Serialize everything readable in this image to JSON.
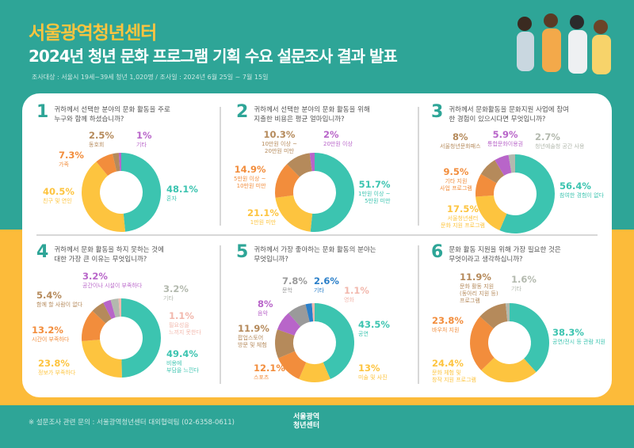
{
  "header": {
    "org": "서울광역청년센터",
    "title": "2024년 청년 문화 프로그램 기획 수요 설문조사 결과 발표",
    "subtitle": "조사대상 : 서울시 19세~39세 청년 1,020명 / 조사일 : 2024년 6월 25일 ~ 7월 15일"
  },
  "footer": {
    "contact": "※ 설문조사 관련 문의 : 서울광역청년센터 대외협력팀 (02-6358-0611)",
    "logo": "서울광역\n청년센터"
  },
  "colors": {
    "teal": "#3cc4b0",
    "yellow": "#fdc43f",
    "orange": "#f28d3c",
    "brown": "#b58a5b",
    "purple": "#b865c9",
    "grey": "#b3b9ae",
    "pink": "#f2b8ad",
    "blue": "#2a7fc9",
    "darkgrey": "#9a9a9a"
  },
  "chart_data": [
    {
      "type": "pie",
      "number": "1",
      "question": "귀하께서 선택한 분야의 문화 활동을 주로\n누구와 함께 하셨습니까?",
      "categories": [
        "혼자",
        "친구 및 연인",
        "가족",
        "동호회",
        "기타"
      ],
      "values": [
        48.1,
        40.5,
        7.3,
        2.5,
        1
      ],
      "labels": [
        "48.1%",
        "40.5%",
        "7.3%",
        "2.5%",
        "1%"
      ],
      "colors": [
        "#3cc4b0",
        "#fdc43f",
        "#f28d3c",
        "#b58a5b",
        "#b865c9"
      ]
    },
    {
      "type": "pie",
      "number": "2",
      "question": "귀하께서 선택한 분야의 문화 활동을 위해\n지출한 비용은 평균 얼마입니까?",
      "categories": [
        "1만원 이상 ~\n5만원 미만",
        "1만원 미만",
        "5만원 이상 ~\n10만원 미만",
        "10만원 이상 ~\n20만원 미만",
        "20만원 이상"
      ],
      "values": [
        51.7,
        21.1,
        14.9,
        10.3,
        2
      ],
      "labels": [
        "51.7%",
        "21.1%",
        "14.9%",
        "10.3%",
        "2%"
      ],
      "colors": [
        "#3cc4b0",
        "#fdc43f",
        "#f28d3c",
        "#b58a5b",
        "#b865c9"
      ]
    },
    {
      "type": "pie",
      "number": "3",
      "question": "귀하께서 문화활동을 문화지원 사업에 참여\n한 경험이 있으시다면 무엇입니까?",
      "categories": [
        "참여한 경험이 없다",
        "서울청년센터\n문화 지원 프로그램",
        "기타 지원\n사업 프로그램",
        "서울청년문화패스",
        "통합문화이용권",
        "청년예술청 공간 사용"
      ],
      "values": [
        56.4,
        17.5,
        9.5,
        8,
        5.9,
        2.7
      ],
      "labels": [
        "56.4%",
        "17.5%",
        "9.5%",
        "8%",
        "5.9%",
        "2.7%"
      ],
      "colors": [
        "#3cc4b0",
        "#fdc43f",
        "#f28d3c",
        "#b58a5b",
        "#b865c9",
        "#b3b9ae"
      ]
    },
    {
      "type": "pie",
      "number": "4",
      "question": "귀하께서 문화 활동을 하지 못하는 것에\n대한 가장 큰 이유는 무엇입니까?",
      "categories": [
        "비용에\n부담을 느낀다",
        "정보가 부족하다",
        "시간이 부족하다",
        "함께 할 사람이 없다",
        "공간이나 시설이 부족하다",
        "기타",
        "필요성을\n느끼지 못한다"
      ],
      "values": [
        49.4,
        23.8,
        13.2,
        5.4,
        3.2,
        3.2,
        1.1
      ],
      "labels": [
        "49.4%",
        "23.8%",
        "13.2%",
        "5.4%",
        "3.2%",
        "3.2%",
        "1.1%"
      ],
      "colors": [
        "#3cc4b0",
        "#fdc43f",
        "#f28d3c",
        "#b58a5b",
        "#b865c9",
        "#b3b9ae",
        "#f2b8ad"
      ]
    },
    {
      "type": "pie",
      "number": "5",
      "question": "귀하께서 가장 좋아하는 문화 활동의 분야는\n무엇입니까?",
      "categories": [
        "공연",
        "미술 및 사진",
        "스포츠",
        "팝업스토어\n방문 및 체험",
        "음악",
        "문학",
        "기타",
        "영화"
      ],
      "values": [
        43.5,
        13,
        12.1,
        11.9,
        8,
        7.8,
        2.6,
        1.1
      ],
      "labels": [
        "43.5%",
        "13%",
        "12.1%",
        "11.9%",
        "8%",
        "7.8%",
        "2.6%",
        "1.1%"
      ],
      "colors": [
        "#3cc4b0",
        "#fdc43f",
        "#f28d3c",
        "#b58a5b",
        "#b865c9",
        "#9a9a9a",
        "#2a7fc9",
        "#f2b8ad"
      ]
    },
    {
      "type": "pie",
      "number": "6",
      "question": "문화 활동 지원을 위해 가장 필요한 것은\n무엇이라고 생각하십니까?",
      "categories": [
        "공연/전시 등 관람 지원",
        "문화 체험 및\n창작 지원 프로그램",
        "바우처 지원",
        "문화 활동 지원\n(동아리 지원 등)\n프로그램",
        "기타"
      ],
      "values": [
        38.3,
        24.4,
        23.8,
        11.9,
        1.6
      ],
      "labels": [
        "38.3%",
        "24.4%",
        "23.8%",
        "11.9%",
        "1.6%"
      ],
      "colors": [
        "#3cc4b0",
        "#fdc43f",
        "#f28d3c",
        "#b58a5b",
        "#b3b9ae"
      ]
    }
  ]
}
